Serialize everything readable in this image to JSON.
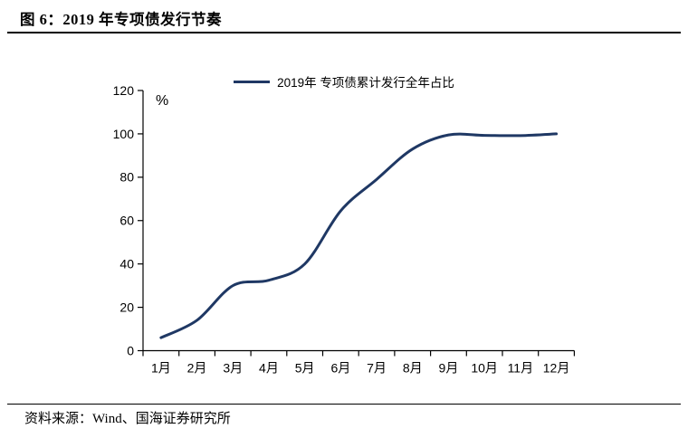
{
  "header": {
    "title": "图 6：2019 年专项债发行节奏"
  },
  "footer": {
    "source": "资料来源：Wind、国海证券研究所"
  },
  "colors": {
    "line": "#1F3864",
    "axis": "#000000",
    "text": "#000000"
  },
  "chart_data": {
    "type": "line",
    "title": "",
    "smooth": true,
    "grid": false,
    "legend_position": "top-center",
    "categories": [
      "1月",
      "2月",
      "3月",
      "4月",
      "5月",
      "6月",
      "7月",
      "8月",
      "9月",
      "10月",
      "11月",
      "12月"
    ],
    "series": [
      {
        "name": "2019年 专项债累计发行全年占比",
        "color": "#1F3864",
        "values": [
          6,
          14,
          30,
          32.5,
          40,
          64.5,
          79,
          93,
          99.5,
          99.3,
          99.2,
          100
        ]
      }
    ],
    "xlabel": "",
    "ylabel": "%",
    "ylim": [
      0,
      120
    ],
    "ytick_step": 20,
    "yticks": [
      0,
      20,
      40,
      60,
      80,
      100,
      120
    ]
  }
}
